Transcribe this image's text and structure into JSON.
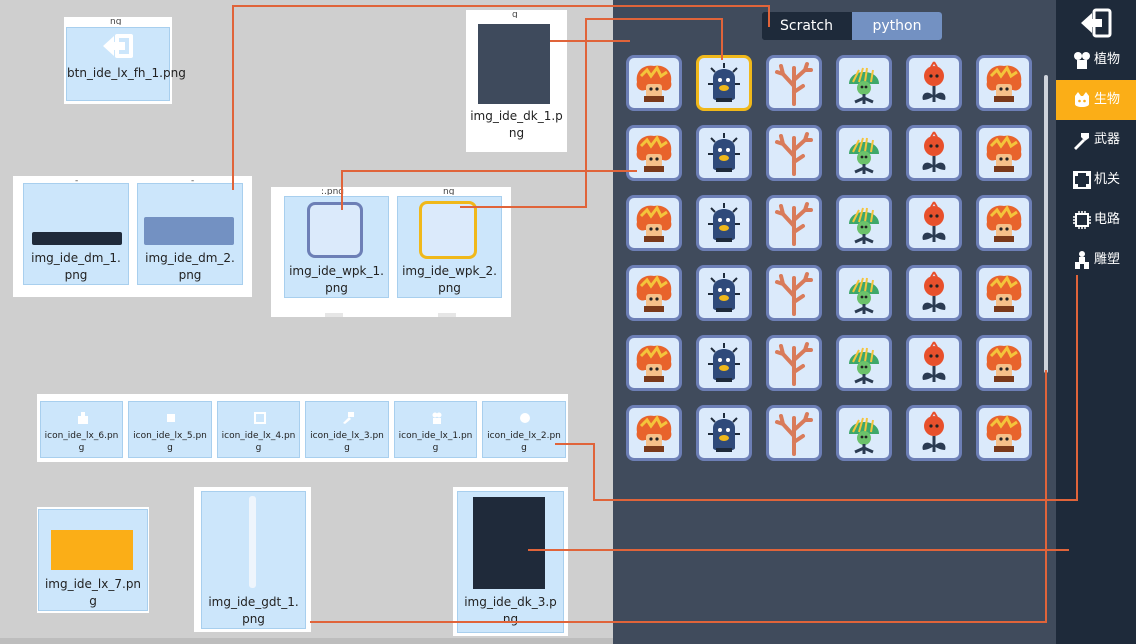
{
  "assets": {
    "btn_fh": "btn_ide_lx_fh_1.png",
    "dk_1": "img_ide_dk_1.png",
    "dm_1": "img_ide_dm_1.png",
    "dm_2": "img_ide_dm_2.png",
    "wpk_1": "img_ide_wpk_1.png",
    "wpk_2": "img_ide_wpk_2.png",
    "lx_6": "icon_ide_lx_6.png",
    "lx_5": "icon_ide_lx_5.png",
    "lx_4": "icon_ide_lx_4.png",
    "lx_3": "icon_ide_lx_3.png",
    "lx_1": "icon_ide_lx_1.png",
    "lx_2": "icon_ide_lx_2.png",
    "lx_7": "img_ide_lx_7.png",
    "gdt_1": "img_ide_gdt_1.png",
    "dk_3": "img_ide_dk_3.png"
  },
  "tabs": {
    "scratch": "Scratch",
    "python": "python"
  },
  "sidebar": {
    "items": [
      {
        "label": "植物",
        "icon": "plant-icon"
      },
      {
        "label": "生物",
        "icon": "creature-icon",
        "active": true
      },
      {
        "label": "武器",
        "icon": "weapon-icon"
      },
      {
        "label": "机关",
        "icon": "mechanism-icon"
      },
      {
        "label": "电路",
        "icon": "circuit-icon"
      },
      {
        "label": "雕塑",
        "icon": "sculpture-icon"
      }
    ]
  },
  "grid": {
    "columns": [
      "flower-creature",
      "cactus-creature",
      "coral-plant",
      "fern-plant",
      "red-bulb-plant",
      "flower-creature"
    ],
    "rows": 6,
    "selected": {
      "row": 0,
      "col": 1
    }
  },
  "colors": {
    "panel": "#404b5c",
    "sidebar": "#1e2a3a",
    "accent": "#fbae17",
    "tab_active": "#7391c2",
    "cell_border": "#6d7fb6",
    "cell_selected_border": "#f0b81a",
    "connector": "#e0643a"
  }
}
